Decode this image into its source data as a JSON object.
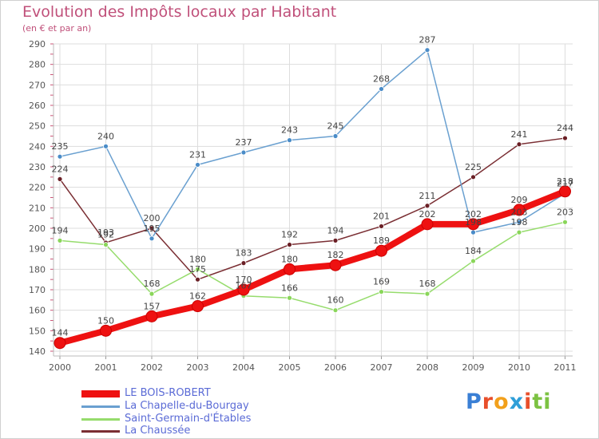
{
  "chart_data": {
    "type": "line",
    "title": "Evolution des Impôts locaux par Habitant",
    "subtitle": "(en € et par an)",
    "xlabel": "",
    "ylabel": "",
    "ylim": [
      140,
      290
    ],
    "yticks": [
      140,
      150,
      160,
      170,
      180,
      190,
      200,
      210,
      220,
      230,
      240,
      250,
      260,
      270,
      280,
      290
    ],
    "categories": [
      "2000",
      "2001",
      "2002",
      "2003",
      "2004",
      "2005",
      "2006",
      "2007",
      "2008",
      "2009",
      "2010",
      "2011"
    ],
    "series": [
      {
        "name": "LE BOIS-ROBERT",
        "color": "#ee1111",
        "emphasis": true,
        "values": [
          144,
          150,
          157,
          162,
          170,
          180,
          182,
          189,
          202,
          202,
          209,
          218
        ]
      },
      {
        "name": "La Chapelle-du-Bourgay",
        "color": "#6aa0d0",
        "values": [
          235,
          240,
          195,
          231,
          237,
          243,
          245,
          268,
          287,
          198,
          203,
          217
        ]
      },
      {
        "name": "Saint-Germain-d'Étables",
        "color": "#96dc6c",
        "values": [
          194,
          192,
          168,
          180,
          167,
          166,
          160,
          169,
          168,
          184,
          198,
          203
        ]
      },
      {
        "name": "La Chaussée",
        "color": "#7a2e33",
        "values": [
          224,
          193,
          200,
          175,
          183,
          192,
          194,
          201,
          211,
          225,
          241,
          244
        ]
      }
    ]
  },
  "logo": {
    "letters": [
      "P",
      "r",
      "o",
      "x",
      "i",
      "t",
      "i"
    ],
    "colors": [
      "#3a7fd5",
      "#e84f2b",
      "#f2a01b",
      "#2f9fd8",
      "#e84f2b",
      "#7cc242",
      "#7cc242"
    ]
  }
}
